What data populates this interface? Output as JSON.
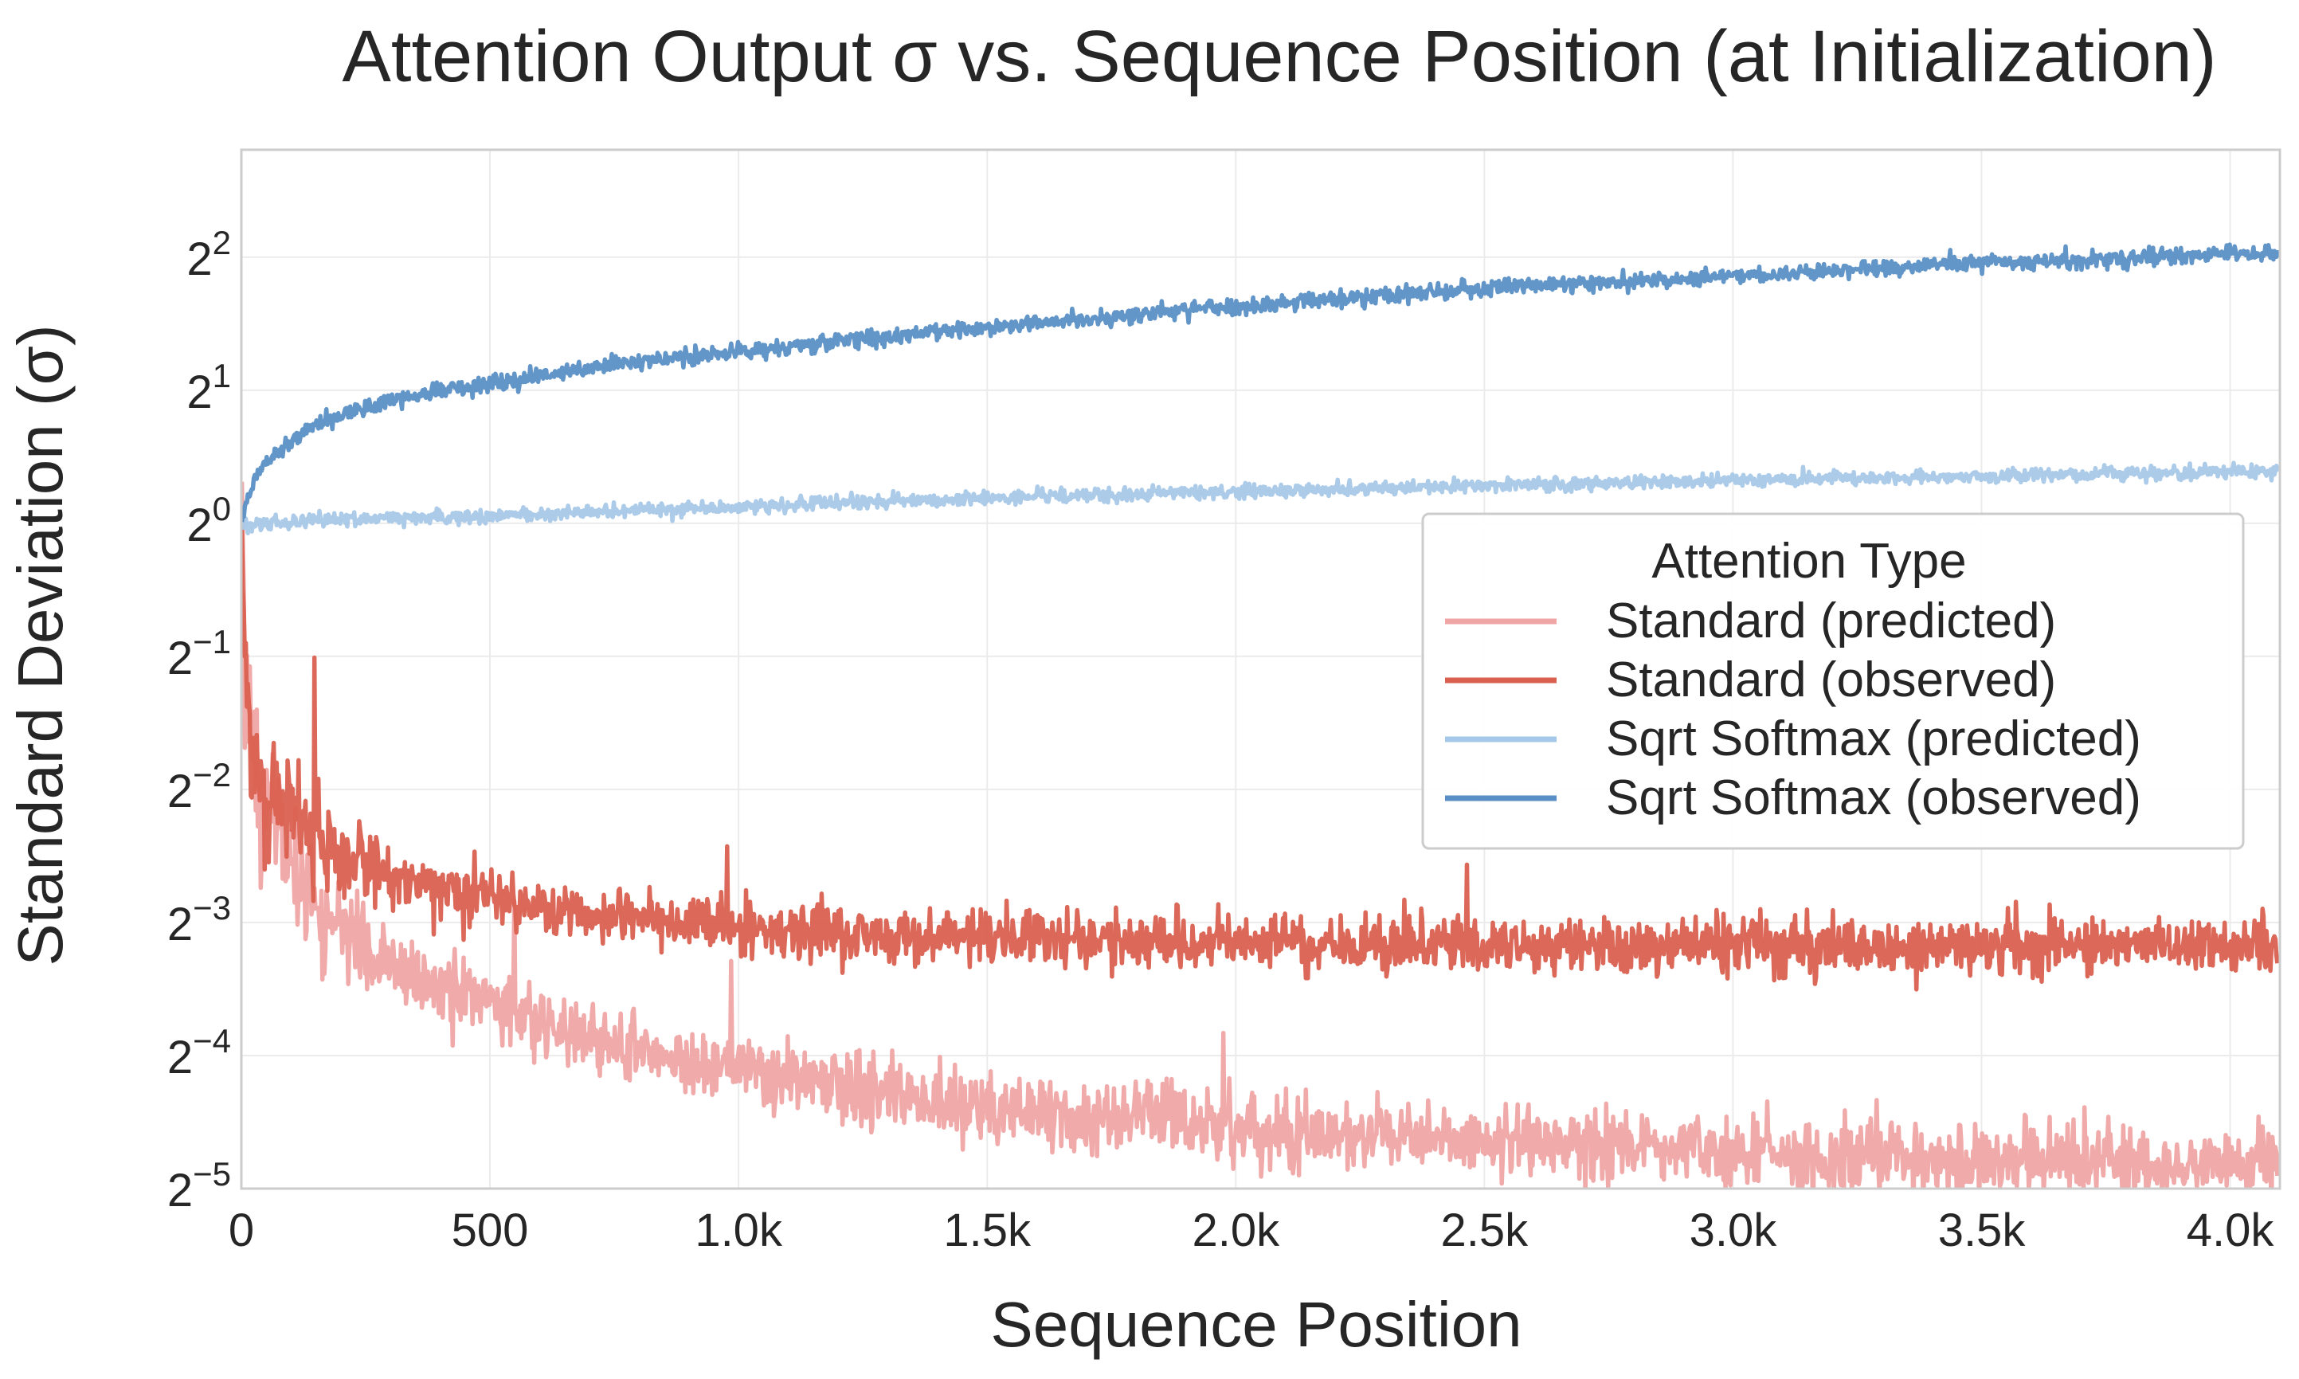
{
  "chart_data": {
    "type": "line",
    "title": "Attention Output σ vs. Sequence Position (at Initialization)",
    "xlabel": "Sequence Position",
    "ylabel": "Standard Deviation (σ)",
    "xscale": "linear",
    "yscale": "log2",
    "xlim": [
      0,
      4100
    ],
    "ylim": [
      0.03125,
      7.0
    ],
    "grid": true,
    "x_ticks": [
      {
        "value": 0,
        "label": "0"
      },
      {
        "value": 500,
        "label": "500"
      },
      {
        "value": 1000,
        "label": "1.0k"
      },
      {
        "value": 1500,
        "label": "1.5k"
      },
      {
        "value": 2000,
        "label": "2.0k"
      },
      {
        "value": 2500,
        "label": "2.5k"
      },
      {
        "value": 3000,
        "label": "3.0k"
      },
      {
        "value": 3500,
        "label": "3.5k"
      },
      {
        "value": 4000,
        "label": "4.0k"
      }
    ],
    "y_ticks": [
      {
        "value": 4,
        "base": "2",
        "exp": "2"
      },
      {
        "value": 2,
        "base": "2",
        "exp": "1"
      },
      {
        "value": 1,
        "base": "2",
        "exp": "0"
      },
      {
        "value": 0.5,
        "base": "2",
        "exp": "−1"
      },
      {
        "value": 0.25,
        "base": "2",
        "exp": "−2"
      },
      {
        "value": 0.125,
        "base": "2",
        "exp": "−3"
      },
      {
        "value": 0.0625,
        "base": "2",
        "exp": "−4"
      },
      {
        "value": 0.03125,
        "base": "2",
        "exp": "−5"
      }
    ],
    "legend": {
      "title": "Attention Type",
      "position": "center-right"
    },
    "series": [
      {
        "name": "Standard (predicted)",
        "color": "#f0a5a5",
        "x": [
          1,
          5,
          10,
          20,
          40,
          60,
          100,
          150,
          200,
          300,
          400,
          500,
          600,
          700,
          800,
          1000,
          1200,
          1500,
          1800,
          2000,
          2500,
          3000,
          3500,
          4096
        ],
        "values": [
          1.0,
          0.63,
          0.45,
          0.34,
          0.25,
          0.21,
          0.17,
          0.14,
          0.121,
          0.098,
          0.088,
          0.081,
          0.074,
          0.068,
          0.064,
          0.058,
          0.053,
          0.048,
          0.045,
          0.043,
          0.04,
          0.038,
          0.036,
          0.0355
        ],
        "noise": 0.09
      },
      {
        "name": "Standard (observed)",
        "color": "#d9604f",
        "x": [
          1,
          5,
          10,
          20,
          40,
          60,
          100,
          150,
          200,
          300,
          400,
          500,
          600,
          700,
          800,
          1000,
          1200,
          1500,
          1800,
          2000,
          2500,
          3000,
          3500,
          4096
        ],
        "values": [
          1.0,
          0.6,
          0.42,
          0.32,
          0.26,
          0.235,
          0.215,
          0.195,
          0.178,
          0.16,
          0.15,
          0.144,
          0.138,
          0.132,
          0.128,
          0.122,
          0.119,
          0.116,
          0.114,
          0.112,
          0.111,
          0.111,
          0.111,
          0.111
        ],
        "noise": 0.07
      },
      {
        "name": "Sqrt Softmax (predicted)",
        "color": "#a6c8e8",
        "x": [
          1,
          50,
          100,
          200,
          500,
          1000,
          1500,
          2000,
          2500,
          3000,
          3500,
          4096
        ],
        "values": [
          1.0,
          1.0,
          1.01,
          1.02,
          1.04,
          1.09,
          1.14,
          1.18,
          1.22,
          1.25,
          1.28,
          1.31
        ],
        "noise": 0.018
      },
      {
        "name": "Sqrt Softmax (observed)",
        "color": "#5a8fc5",
        "x": [
          1,
          10,
          25,
          50,
          100,
          150,
          200,
          300,
          400,
          500,
          700,
          1000,
          1500,
          2000,
          2500,
          3000,
          3500,
          4096
        ],
        "values": [
          1.0,
          1.12,
          1.25,
          1.38,
          1.55,
          1.68,
          1.76,
          1.9,
          2.0,
          2.08,
          2.25,
          2.45,
          2.78,
          3.1,
          3.4,
          3.62,
          3.88,
          4.1
        ],
        "noise": 0.022
      }
    ]
  }
}
